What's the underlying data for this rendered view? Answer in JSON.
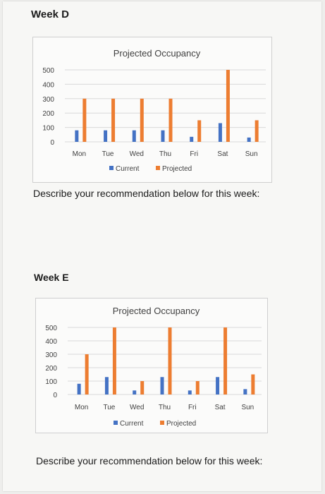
{
  "weeks": [
    {
      "heading": "Week D",
      "prompt": "Describe your recommendation below for this week:"
    },
    {
      "heading": "Week E",
      "prompt": "Describe your recommendation below for this week:"
    }
  ],
  "colors": {
    "current": "#4472c4",
    "projected": "#ed7d31",
    "grid": "#d9d9d9",
    "text": "#404040"
  },
  "chart_data": [
    {
      "type": "bar",
      "title": "Projected Occupancy",
      "categories": [
        "Mon",
        "Tue",
        "Wed",
        "Thu",
        "Fri",
        "Sat",
        "Sun"
      ],
      "series": [
        {
          "name": "Current",
          "values": [
            80,
            80,
            80,
            80,
            35,
            130,
            30
          ]
        },
        {
          "name": "Projected",
          "values": [
            300,
            300,
            300,
            300,
            150,
            500,
            150
          ]
        }
      ],
      "ylim": [
        0,
        500
      ],
      "yticks": [
        0,
        100,
        200,
        300,
        400,
        500
      ],
      "grid": true,
      "legend": "bottom"
    },
    {
      "type": "bar",
      "title": "Projected Occupancy",
      "categories": [
        "Mon",
        "Tue",
        "Wed",
        "Thu",
        "Fri",
        "Sat",
        "Sun"
      ],
      "series": [
        {
          "name": "Current",
          "values": [
            80,
            130,
            30,
            130,
            30,
            130,
            40
          ]
        },
        {
          "name": "Projected",
          "values": [
            300,
            500,
            100,
            500,
            100,
            500,
            150
          ]
        }
      ],
      "ylim": [
        0,
        500
      ],
      "yticks": [
        0,
        100,
        200,
        300,
        400,
        500
      ],
      "grid": true,
      "legend": "bottom"
    }
  ]
}
